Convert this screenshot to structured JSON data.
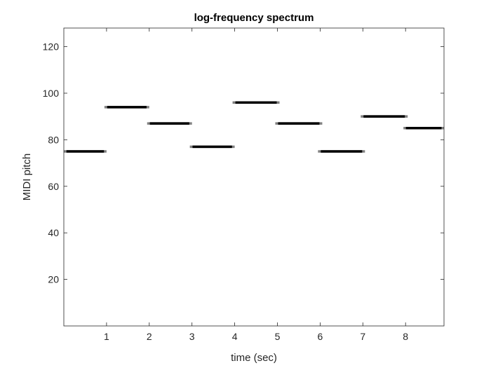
{
  "chart_data": {
    "type": "line",
    "title": "log-frequency spectrum",
    "xlabel": "time (sec)",
    "ylabel": "MIDI pitch",
    "xlim": [
      0,
      8.9
    ],
    "ylim": [
      0,
      128
    ],
    "xticks": [
      1,
      2,
      3,
      4,
      5,
      6,
      7,
      8
    ],
    "yticks": [
      20,
      40,
      60,
      80,
      100,
      120
    ],
    "grid": false,
    "colors": {
      "note": "#000000",
      "note_edge": "#808080",
      "axis": "#262626"
    },
    "notes": [
      {
        "start": 0.0,
        "end": 1.0,
        "pitch": 75
      },
      {
        "start": 0.95,
        "end": 2.0,
        "pitch": 94
      },
      {
        "start": 1.95,
        "end": 3.0,
        "pitch": 87
      },
      {
        "start": 2.95,
        "end": 4.0,
        "pitch": 77
      },
      {
        "start": 3.95,
        "end": 5.05,
        "pitch": 96
      },
      {
        "start": 4.95,
        "end": 6.05,
        "pitch": 87
      },
      {
        "start": 5.95,
        "end": 7.05,
        "pitch": 75
      },
      {
        "start": 6.95,
        "end": 8.05,
        "pitch": 90
      },
      {
        "start": 7.95,
        "end": 8.9,
        "pitch": 85
      }
    ]
  }
}
